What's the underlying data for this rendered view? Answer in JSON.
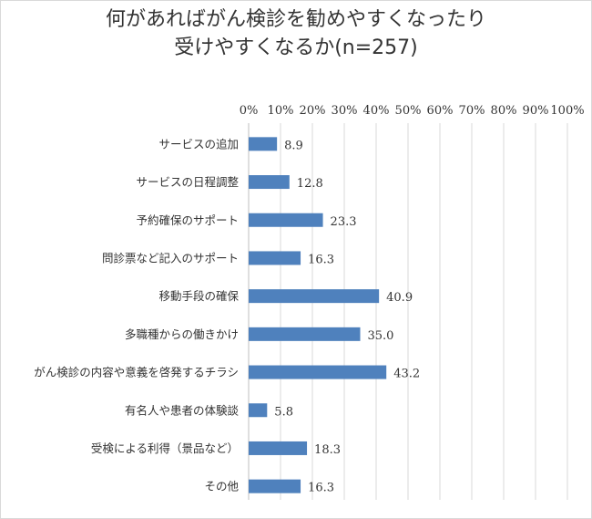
{
  "chart_data": {
    "type": "bar",
    "orientation": "horizontal",
    "title_lines": [
      "何があればがん検診を勧めやすくなったり",
      "受けやすくなるか(n=257)"
    ],
    "categories": [
      "サービスの追加",
      "サービスの日程調整",
      "予約確保のサポート",
      "問診票など記入のサポート",
      "移動手段の確保",
      "多職種からの働きかけ",
      "がん検診の内容や意義を啓発するチラシ",
      "有名人や患者の体験談",
      "受検による利得（景品など）",
      "その他"
    ],
    "values": [
      8.9,
      12.8,
      23.3,
      16.3,
      40.9,
      35.0,
      43.2,
      5.8,
      18.3,
      16.3
    ],
    "value_labels": [
      "8.9",
      "12.8",
      "23.3",
      "16.3",
      "40.9",
      "35.0",
      "43.2",
      "5.8",
      "18.3",
      "16.3"
    ],
    "xlim": [
      0,
      100
    ],
    "x_ticks": [
      "0%",
      "10%",
      "20%",
      "30%",
      "40%",
      "50%",
      "60%",
      "70%",
      "80%",
      "90%",
      "100%"
    ],
    "x_axis_position": "top",
    "grid": true,
    "legend": "none",
    "bar_color": "#4f81bd",
    "grid_color": "#d9d9d9"
  }
}
